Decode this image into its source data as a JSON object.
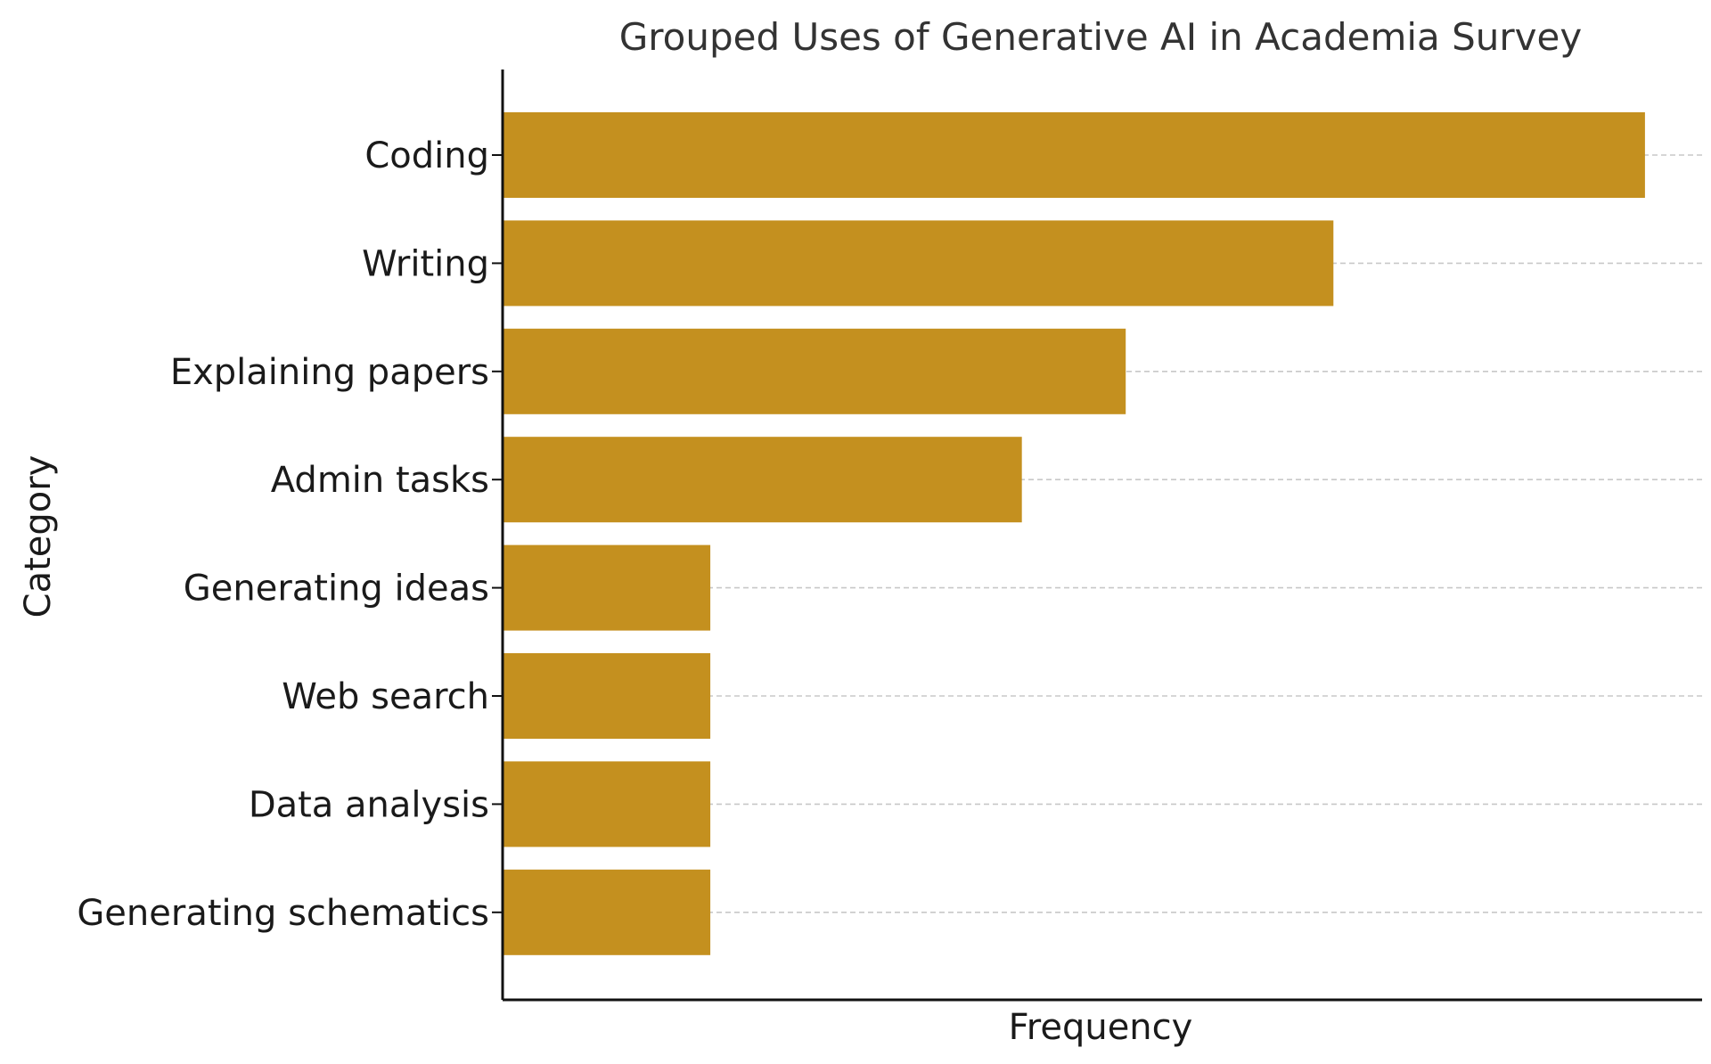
{
  "chart_data": {
    "type": "bar",
    "orientation": "horizontal",
    "title": "Grouped Uses of Generative AI in Academia Survey",
    "xlabel": "Frequency",
    "ylabel": "Category",
    "categories": [
      "Coding",
      "Writing",
      "Explaining papers",
      "Admin tasks",
      "Generating ideas",
      "Web search",
      "Data analysis",
      "Generating schematics"
    ],
    "values": [
      11,
      8,
      6,
      5,
      2,
      2,
      2,
      2
    ],
    "xlim": [
      0,
      11.55
    ],
    "x_ticks_shown": false,
    "grid": "dashed horizontal gridlines at category positions",
    "legend": "none",
    "colors": {
      "bar": "#C4901F",
      "title": "#333333",
      "text": "#1a1a1a",
      "axis": "#111111",
      "grid": "#c8c8c8"
    }
  }
}
